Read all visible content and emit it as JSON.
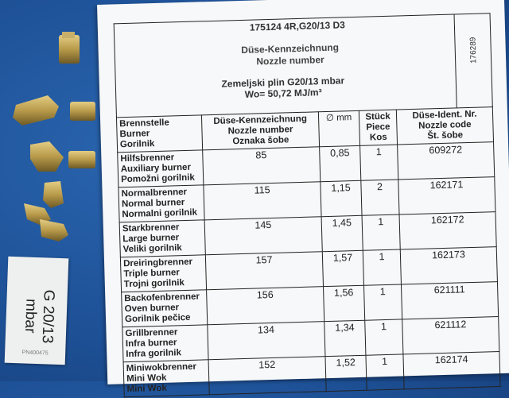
{
  "label": {
    "text": "G 20/13 mbar",
    "code": "PN400475"
  },
  "sheet": {
    "title": "175124 4R,G20/13 D3",
    "side_number": "176289",
    "overlap_lines": [
      "Düse-Kennzeichnung",
      "Nozzle number"
    ],
    "gas_line": "Zemeljski plin G20/13 mbar",
    "wobbe_line": "Wo= 50,72 MJ/m³"
  },
  "table": {
    "headers": [
      [
        "Brennstelle",
        "Burner",
        "Gorilnik"
      ],
      [
        "Düse-Kennzeichnung",
        "Nozzle number",
        "Oznaka šobe"
      ],
      [
        "∅ mm"
      ],
      [
        "Stück",
        "Piece",
        "Kos"
      ],
      [
        "Düse-Ident. Nr.",
        "Nozzle code",
        "Št. šobe"
      ]
    ],
    "rows": [
      {
        "burner": [
          "Hilfsbrenner",
          "Auxiliary burner",
          "Pomožni gorilnik"
        ],
        "nozzle": "85",
        "mm": "0,85",
        "pcs": "1",
        "code": "609272"
      },
      {
        "burner": [
          "Normalbrenner",
          "Normal burner",
          "Normalni gorilnik"
        ],
        "nozzle": "115",
        "mm": "1,15",
        "pcs": "2",
        "code": "162171"
      },
      {
        "burner": [
          "Starkbrenner",
          "Large burner",
          "Veliki gorilnik"
        ],
        "nozzle": "145",
        "mm": "1,45",
        "pcs": "1",
        "code": "162172"
      },
      {
        "burner": [
          "Dreiringbrenner",
          "Triple burner",
          "Trojni gorilnik"
        ],
        "nozzle": "157",
        "mm": "1,57",
        "pcs": "1",
        "code": "162173"
      },
      {
        "burner": [
          "Backofenbrenner",
          "Oven burner",
          "Gorilnik pečice"
        ],
        "nozzle": "156",
        "mm": "1,56",
        "pcs": "1",
        "code": "621111"
      },
      {
        "burner": [
          "Grillbrenner",
          "Infra burner",
          "Infra gorilnik"
        ],
        "nozzle": "134",
        "mm": "1,34",
        "pcs": "1",
        "code": "621112"
      },
      {
        "burner": [
          "Miniwokbrenner",
          "Mini Wok",
          "Mini Wok"
        ],
        "nozzle": "152",
        "mm": "1,52",
        "pcs": "1",
        "code": "162174"
      }
    ]
  },
  "colors": {
    "background": "#1d4f94",
    "brass": "#b89a4a",
    "paper": "#f7f8f9"
  }
}
